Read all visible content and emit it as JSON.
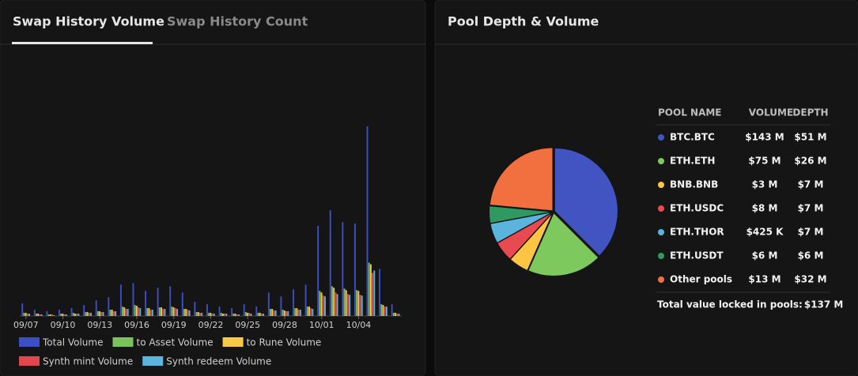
{
  "tabs": [
    "Swap History Volume",
    "Swap History Count"
  ],
  "pool_title": "Pool Depth & Volume",
  "table": {
    "columns": [
      "POOL NAME",
      "VOLUME",
      "DEPTH"
    ],
    "volumes": [
      "$143 M",
      "$75 M",
      "$3 M",
      "$8 M",
      "$425 K",
      "$6 M",
      "$13 M"
    ],
    "total_label": "Total value locked in pools:",
    "total_value": "$137 M"
  },
  "chart_data": [
    {
      "type": "bar",
      "categories": [
        "09/07",
        null,
        null,
        "09/10",
        null,
        null,
        "09/13",
        null,
        null,
        "09/16",
        null,
        null,
        "09/19",
        null,
        null,
        "09/22",
        null,
        null,
        "09/25",
        null,
        null,
        "09/28",
        null,
        null,
        "10/01",
        null,
        null,
        "10/04",
        null,
        null,
        null
      ],
      "series": [
        {
          "name": "Total Volume",
          "color": "#3d4fc4",
          "values": [
            16,
            8,
            6,
            8,
            10,
            14,
            20,
            24,
            40,
            42,
            32,
            36,
            38,
            30,
            18,
            15,
            12,
            10,
            15,
            12,
            30,
            25,
            34,
            40,
            115,
            135,
            120,
            118,
            242,
            60,
            15
          ]
        },
        {
          "name": "to Asset Volume",
          "color": "#7ac35a",
          "values": [
            4,
            3,
            2,
            3,
            4,
            5,
            6,
            8,
            12,
            14,
            10,
            11,
            12,
            9,
            5,
            4,
            4,
            3,
            5,
            4,
            9,
            8,
            10,
            12,
            32,
            38,
            35,
            33,
            68,
            15,
            4
          ]
        },
        {
          "name": "to Rune Volume",
          "color": "#f9c846",
          "values": [
            4,
            3,
            2,
            3,
            3,
            5,
            6,
            8,
            11,
            13,
            10,
            11,
            11,
            9,
            5,
            4,
            3,
            3,
            4,
            4,
            9,
            7,
            10,
            12,
            30,
            36,
            33,
            32,
            66,
            14,
            4
          ]
        },
        {
          "name": "Synth mint Volume",
          "color": "#e0474f",
          "values": [
            3,
            2,
            2,
            2,
            3,
            4,
            5,
            6,
            9,
            11,
            8,
            9,
            10,
            8,
            4,
            3,
            3,
            2,
            4,
            3,
            7,
            6,
            8,
            10,
            26,
            30,
            28,
            27,
            55,
            12,
            3
          ]
        },
        {
          "name": "Synth redeem Volume",
          "color": "#5bb5de",
          "values": [
            3,
            2,
            1,
            2,
            3,
            4,
            5,
            6,
            9,
            10,
            8,
            9,
            9,
            7,
            4,
            3,
            3,
            2,
            3,
            3,
            7,
            6,
            8,
            9,
            25,
            28,
            27,
            26,
            58,
            12,
            3
          ]
        }
      ]
    },
    {
      "type": "pie",
      "categories": [
        "BTC.BTC",
        "ETH.ETH",
        "BNB.BNB",
        "ETH.USDC",
        "ETH.THOR",
        "ETH.USDT",
        "Other pools"
      ],
      "values": [
        51,
        26,
        7,
        7,
        7,
        6,
        32
      ],
      "value_labels": [
        "$51 M",
        "$26 M",
        "$7 M",
        "$7 M",
        "$7 M",
        "$6 M",
        "$32 M"
      ],
      "colors": [
        "#4154c2",
        "#7dc95e",
        "#fdc543",
        "#e84a52",
        "#5ab4dc",
        "#2e9960",
        "#f2703f"
      ]
    }
  ]
}
